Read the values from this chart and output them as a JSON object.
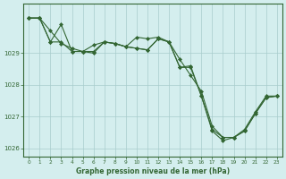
{
  "hours": [
    0,
    1,
    2,
    3,
    4,
    5,
    6,
    7,
    8,
    9,
    10,
    11,
    12,
    13,
    14,
    15,
    16,
    17,
    18,
    19,
    20,
    21,
    22,
    23
  ],
  "line1": [
    1030.1,
    1030.1,
    1029.7,
    1029.3,
    1029.15,
    1029.05,
    1029.25,
    1029.35,
    1029.3,
    1029.2,
    1029.15,
    1029.1,
    1029.45,
    1029.35,
    1028.55,
    1028.6,
    1027.65,
    1026.6,
    1026.35,
    1026.35,
    1026.55,
    1027.1,
    1027.6,
    1027.65
  ],
  "line2": [
    1030.1,
    1030.1,
    1029.35,
    1029.35,
    1029.05,
    1029.05,
    1029.0,
    1029.35,
    1029.3,
    1029.2,
    1029.5,
    1029.45,
    1029.5,
    1029.35,
    1028.8,
    1028.3,
    1027.8,
    1026.7,
    1026.35,
    1026.35,
    1026.6,
    1027.15,
    1027.65,
    1027.65
  ],
  "line3": [
    1030.1,
    1030.1,
    1029.35,
    1029.9,
    1029.05,
    1029.05,
    1029.05,
    1029.35,
    1029.3,
    1029.2,
    1029.15,
    1029.1,
    1029.45,
    1029.35,
    1028.55,
    1028.55,
    1027.65,
    1026.55,
    1026.25,
    1026.35,
    1026.55,
    1027.1,
    1027.6,
    1027.65
  ],
  "line_color": "#336633",
  "bg_color": "#d4eeee",
  "grid_color": "#a8cccc",
  "axis_color": "#336633",
  "ylim_min": 1025.75,
  "ylim_max": 1030.55,
  "yticks": [
    1026,
    1027,
    1028,
    1029
  ],
  "xlabel": "Graphe pression niveau de la mer (hPa)",
  "marker": "D",
  "marker_size": 2.0,
  "linewidth": 0.8
}
